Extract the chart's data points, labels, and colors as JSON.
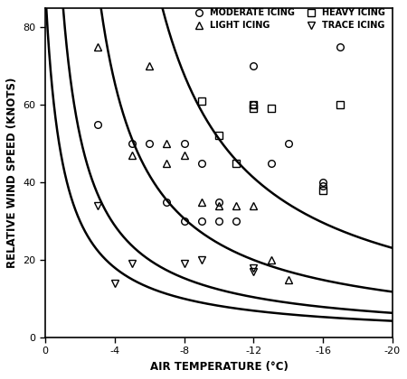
{
  "xlabel": "AIR TEMPERATURE (°C)",
  "ylabel": "RELATIVE WIND SPEED (KNOTS)",
  "xlim": [
    0,
    -20
  ],
  "ylim": [
    0,
    85
  ],
  "xticks": [
    0,
    -4,
    -8,
    -12,
    -16,
    -20
  ],
  "yticks": [
    0,
    20,
    40,
    60,
    80
  ],
  "moderate_icing": [
    [
      -3,
      55
    ],
    [
      -5,
      50
    ],
    [
      -6,
      50
    ],
    [
      -7,
      35
    ],
    [
      -8,
      50
    ],
    [
      -8,
      30
    ],
    [
      -9,
      30
    ],
    [
      -9,
      45
    ],
    [
      -10,
      30
    ],
    [
      -10,
      35
    ],
    [
      -11,
      30
    ],
    [
      -12,
      70
    ],
    [
      -12,
      60
    ],
    [
      -13,
      45
    ],
    [
      -14,
      50
    ],
    [
      -16,
      40
    ],
    [
      -16,
      39
    ],
    [
      -17,
      75
    ]
  ],
  "heavy_icing": [
    [
      -9,
      61
    ],
    [
      -10,
      52
    ],
    [
      -11,
      45
    ],
    [
      -12,
      60
    ],
    [
      -12,
      59
    ],
    [
      -13,
      59
    ],
    [
      -16,
      38
    ],
    [
      -17,
      60
    ]
  ],
  "light_icing": [
    [
      -3,
      75
    ],
    [
      -5,
      47
    ],
    [
      -6,
      70
    ],
    [
      -7,
      50
    ],
    [
      -7,
      45
    ],
    [
      -8,
      47
    ],
    [
      -9,
      35
    ],
    [
      -10,
      34
    ],
    [
      -11,
      34
    ],
    [
      -12,
      34
    ],
    [
      -13,
      20
    ],
    [
      -14,
      15
    ]
  ],
  "trace_icing": [
    [
      -3,
      34
    ],
    [
      -4,
      14
    ],
    [
      -5,
      19
    ],
    [
      -8,
      19
    ],
    [
      -9,
      20
    ],
    [
      -12,
      18
    ],
    [
      -12,
      17
    ]
  ],
  "curve_params": [
    {
      "A": 90,
      "T0": -1.0
    },
    {
      "A": 130,
      "T0": -0.5
    },
    {
      "A": 230,
      "T0": 0.5
    },
    {
      "A": 420,
      "T0": 1.8
    }
  ],
  "background_color": "#ffffff",
  "line_color": "#000000",
  "marker_color": "#000000"
}
